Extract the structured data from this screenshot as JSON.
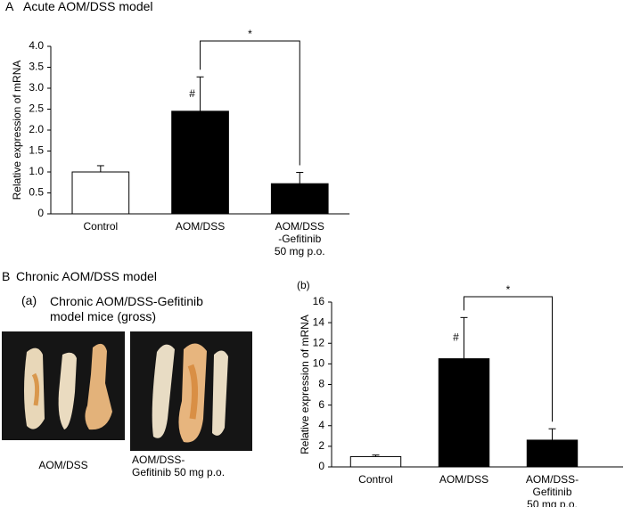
{
  "chart_data": [
    {
      "type": "bar",
      "panel_label": "A",
      "title": "Acute AOM/DSS model",
      "ylabel": "Relative expression of mRNA",
      "categories": [
        "Control",
        "AOM/DSS",
        "AOM/DSS\n-Gefitinib\n50 mg p.o."
      ],
      "values": [
        1.0,
        2.45,
        0.72
      ],
      "errors": [
        0.15,
        0.82,
        0.27
      ],
      "colors": [
        "#ffffff",
        "#000000",
        "#000000"
      ],
      "bar_labels": [
        null,
        "#",
        null
      ],
      "bracket_label": "*",
      "ylim": [
        0,
        4
      ],
      "yticks": [
        0,
        0.5,
        {
          "value": 1,
          "label": "1.0"
        },
        1.5,
        {
          "value": 2,
          "label": "2.0"
        },
        2.5,
        {
          "value": 3,
          "label": "3.0"
        },
        3.5,
        {
          "value": 4,
          "label": "4.0"
        }
      ]
    },
    {
      "type": "bar",
      "title": "(b)",
      "ylabel": "Relative expression of mRNA",
      "categories": [
        "Control",
        "AOM/DSS",
        "AOM/DSS-\nGefitinib\n50 mg p.o."
      ],
      "values": [
        1.0,
        10.5,
        2.6
      ],
      "errors": [
        0.15,
        4.0,
        1.1
      ],
      "colors": [
        "#ffffff",
        "#000000",
        "#000000"
      ],
      "bar_labels": [
        null,
        "#",
        null
      ],
      "bracket_label": "*",
      "ylim": [
        0,
        16
      ],
      "yticks": [
        0,
        2,
        4,
        6,
        8,
        10,
        12,
        14,
        16
      ]
    }
  ],
  "panel_b": {
    "label": "B",
    "title": "Chronic AOM/DSS model"
  },
  "gross_photos": {
    "label": "(a)",
    "title": "Chronic AOM/DSS-Gefitinib\nmodel mice  (gross)",
    "captions": [
      "AOM/DSS",
      "AOM/DSS-\nGefitinib 50 mg p.o."
    ]
  }
}
